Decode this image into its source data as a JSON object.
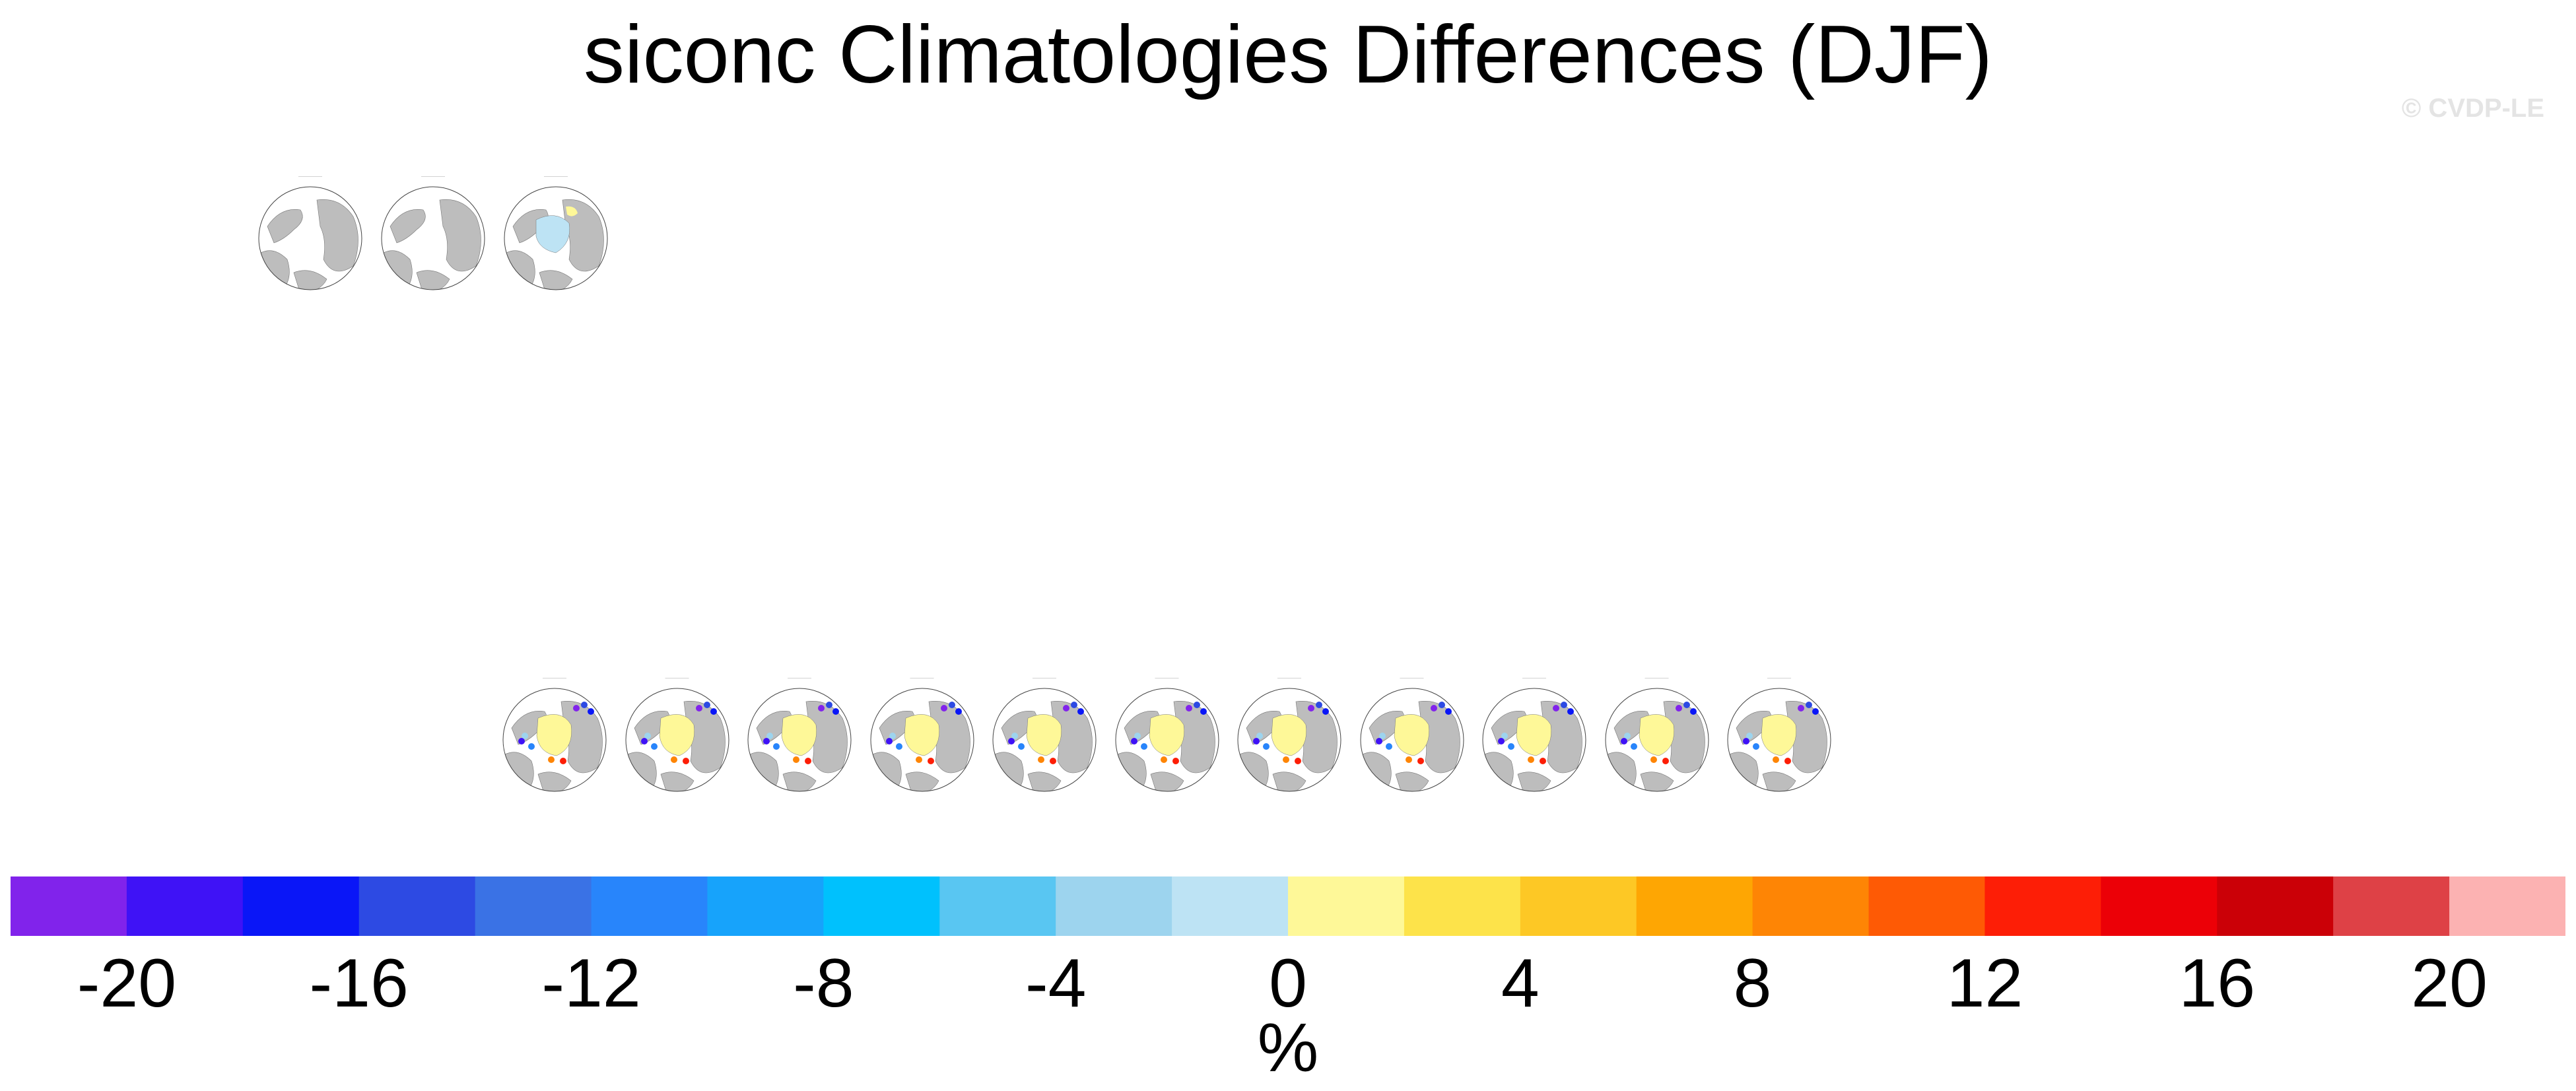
{
  "title": "siconc Climatologies Differences (DJF)",
  "watermark": "© CVDP-LE",
  "chart_data": {
    "type": "heatmap",
    "title": "siconc Climatologies Differences (DJF)",
    "variable": "siconc",
    "season": "DJF",
    "units": "%",
    "colorbar": {
      "min": -22,
      "max": 22,
      "step": 2,
      "tick_labels": [
        "-20",
        "-16",
        "-12",
        "-8",
        "-4",
        "0",
        "4",
        "8",
        "12",
        "16",
        "20"
      ],
      "tick_values": [
        -20,
        -16,
        -12,
        -8,
        -4,
        0,
        4,
        8,
        12,
        16,
        20
      ],
      "colors": [
        "#8123eb",
        "#3f12f6",
        "#0a16f7",
        "#2d4ae3",
        "#3a72e5",
        "#2885fb",
        "#17a3fb",
        "#00c1fd",
        "#59c6f2",
        "#9dd4ee",
        "#bde3f4",
        "#fef898",
        "#fde34a",
        "#fdc825",
        "#fea603",
        "#fe8505",
        "#fe5a05",
        "#fd1e06",
        "#ec0007",
        "#cb0007",
        "#de4146",
        "#fcb2b2"
      ]
    },
    "row_1_panel_count": 3,
    "row_2_panel_count": 11
  }
}
